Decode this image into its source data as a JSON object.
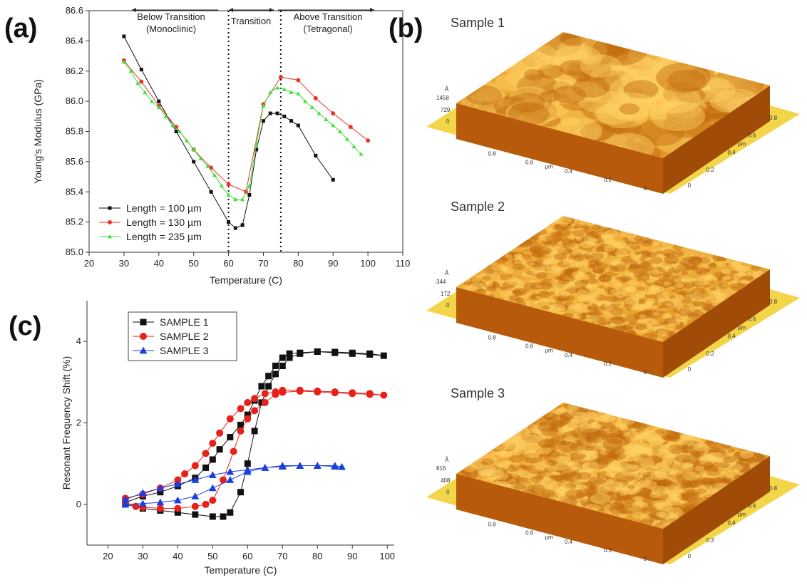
{
  "panel_labels": [
    "(a)",
    "(b)",
    "(c)"
  ],
  "afm_images": [
    {
      "title": "Sample 1",
      "z_labels": [
        "Å",
        "1458",
        "729",
        "0"
      ],
      "x_labels": [
        "0.8",
        "0.6",
        "µm",
        "0.4",
        "0.2",
        "0"
      ],
      "y_labels": [
        "0",
        "0.2",
        "0.4",
        "µm",
        "0.6",
        "0.8"
      ]
    },
    {
      "title": "Sample 2",
      "z_labels": [
        "Å",
        "344",
        "172",
        "0"
      ],
      "x_labels": [
        "0.8",
        "0.6",
        "µm",
        "0.4",
        "0.2",
        "0"
      ],
      "y_labels": [
        "0",
        "0.2",
        "0.4",
        "µm",
        "0.6",
        "0.8"
      ]
    },
    {
      "title": "Sample 3",
      "z_labels": [
        "Å",
        "816",
        "408",
        "0"
      ],
      "x_labels": [
        "0.8",
        "0.6",
        "µm",
        "0.4",
        "0.2",
        "0"
      ],
      "y_labels": [
        "0",
        "0.2",
        "0.4",
        "µm",
        "0.6",
        "0.8"
      ]
    }
  ],
  "chart_data": [
    {
      "type": "line",
      "xlabel": "Temperature (C)",
      "ylabel": "Young's Modulus (GPa)",
      "xlim": [
        20,
        110
      ],
      "xticks": [
        20,
        30,
        40,
        50,
        60,
        70,
        80,
        90,
        100,
        110
      ],
      "ylim": [
        85.0,
        86.6
      ],
      "yticks": [
        {
          "value": 85.0,
          "label": "85.0"
        },
        85.2,
        85.4,
        85.6,
        85.8,
        {
          "value": 86.0,
          "label": "86.0"
        },
        86.2,
        86.4,
        86.6
      ],
      "frame": true,
      "legend": "lower left",
      "legend_frame": false,
      "vlines": [
        60,
        75
      ],
      "annotations": [
        {
          "lines": [
            "Below Transition",
            "(Monoclinic)"
          ]
        },
        {
          "lines": [
            "Transition"
          ]
        },
        {
          "lines": [
            "Above Transition",
            "(Tetragonal)"
          ]
        }
      ],
      "series": [
        {
          "name": "Length = 100 µm",
          "color": "#111111",
          "marker": "square",
          "x": [
            30,
            35,
            40,
            45,
            50,
            55,
            60,
            62,
            64,
            66,
            68,
            70,
            72,
            74,
            76,
            78,
            80,
            85,
            90
          ],
          "values": [
            86.43,
            86.21,
            86.0,
            85.8,
            85.6,
            85.4,
            85.2,
            85.16,
            85.18,
            85.38,
            85.68,
            85.87,
            85.92,
            85.92,
            85.9,
            85.87,
            85.84,
            85.64,
            85.48
          ]
        },
        {
          "name": "Length = 130 µm",
          "color": "#e8382a",
          "marker": "circle",
          "x": [
            30,
            35,
            40,
            45,
            50,
            55,
            60,
            65,
            70,
            75,
            80,
            85,
            90,
            95,
            100
          ],
          "values": [
            86.27,
            86.13,
            85.97,
            85.83,
            85.68,
            85.56,
            85.45,
            85.4,
            85.98,
            86.16,
            86.14,
            86.02,
            85.92,
            85.83,
            85.74
          ]
        },
        {
          "name": "Length = 235 µm",
          "color": "#3ee03a",
          "marker": "triangle",
          "x": [
            30,
            32,
            34,
            36,
            38,
            40,
            42,
            44,
            46,
            48,
            50,
            52,
            54,
            56,
            58,
            60,
            62,
            64,
            66,
            68,
            70,
            72,
            74,
            76,
            78,
            80,
            82,
            84,
            86,
            88,
            90,
            92,
            94,
            96,
            98
          ],
          "values": [
            86.26,
            86.2,
            86.12,
            86.06,
            86.0,
            85.96,
            85.9,
            85.84,
            85.8,
            85.74,
            85.68,
            85.62,
            85.57,
            85.51,
            85.44,
            85.38,
            85.35,
            85.35,
            85.44,
            85.72,
            85.97,
            86.06,
            86.09,
            86.08,
            86.06,
            86.05,
            86.0,
            85.96,
            85.92,
            85.88,
            85.84,
            85.8,
            85.75,
            85.7,
            85.65
          ]
        }
      ]
    },
    {
      "type": "line",
      "xlabel": "Temperature (C)",
      "ylabel": "Resonant Frequency Shift (%)",
      "xlim": [
        14,
        102
      ],
      "xticks": [
        20,
        30,
        40,
        50,
        60,
        70,
        80,
        90,
        100
      ],
      "ylim": [
        -1,
        5
      ],
      "yticks": [
        0,
        2,
        4
      ],
      "frame": false,
      "legend": "upper left",
      "legend_frame": true,
      "series": [
        {
          "name": "SAMPLE 1",
          "color": "#111111",
          "marker": "square",
          "x": [
            25,
            30,
            35,
            40,
            45,
            50,
            53,
            55,
            58,
            60,
            62,
            64,
            66,
            68,
            70,
            72,
            75,
            80,
            85,
            90,
            95,
            99,
            95,
            90,
            85,
            80,
            75,
            72,
            70,
            68,
            66,
            64,
            62,
            60,
            58,
            55,
            52,
            50,
            48,
            45,
            40,
            35,
            30,
            25
          ],
          "values": [
            0,
            -0.1,
            -0.15,
            -0.2,
            -0.25,
            -0.3,
            -0.3,
            -0.2,
            0.3,
            1.0,
            1.8,
            2.5,
            2.9,
            3.2,
            3.4,
            3.6,
            3.7,
            3.75,
            3.72,
            3.7,
            3.68,
            3.65,
            3.7,
            3.72,
            3.74,
            3.75,
            3.72,
            3.7,
            3.6,
            3.4,
            3.15,
            2.9,
            2.55,
            2.2,
            1.95,
            1.65,
            1.35,
            1.1,
            0.9,
            0.65,
            0.45,
            0.3,
            0.2,
            0.05
          ]
        },
        {
          "name": "SAMPLE 2",
          "color": "#e8201a",
          "marker": "circle",
          "x": [
            25,
            28,
            30,
            35,
            40,
            45,
            48,
            50,
            53,
            56,
            58,
            60,
            62,
            65,
            68,
            70,
            75,
            80,
            85,
            90,
            95,
            99,
            95,
            90,
            85,
            80,
            75,
            70,
            68,
            65,
            62,
            60,
            58,
            55,
            52,
            50,
            48,
            45,
            42,
            40,
            35,
            30,
            25
          ],
          "values": [
            0.05,
            -0.05,
            -0.07,
            -0.1,
            -0.1,
            -0.05,
            0,
            0.1,
            0.6,
            1.3,
            1.8,
            2.1,
            2.3,
            2.5,
            2.7,
            2.75,
            2.78,
            2.76,
            2.74,
            2.72,
            2.7,
            2.68,
            2.72,
            2.74,
            2.76,
            2.78,
            2.8,
            2.8,
            2.76,
            2.72,
            2.6,
            2.5,
            2.35,
            2.1,
            1.75,
            1.5,
            1.25,
            0.95,
            0.75,
            0.6,
            0.4,
            0.25,
            0.15
          ]
        },
        {
          "name": "SAMPLE 3",
          "color": "#1a3ee0",
          "marker": "triangle",
          "x": [
            25,
            30,
            35,
            40,
            45,
            50,
            55,
            60,
            65,
            70,
            75,
            80,
            85,
            87,
            85,
            80,
            75,
            70,
            65,
            60,
            55,
            50,
            45,
            40,
            35,
            30,
            25
          ],
          "values": [
            0,
            0.02,
            0.05,
            0.1,
            0.2,
            0.4,
            0.6,
            0.8,
            0.9,
            0.95,
            0.95,
            0.95,
            0.93,
            0.92,
            0.95,
            0.95,
            0.95,
            0.93,
            0.9,
            0.85,
            0.8,
            0.72,
            0.6,
            0.5,
            0.4,
            0.28,
            0.12
          ]
        }
      ]
    }
  ]
}
